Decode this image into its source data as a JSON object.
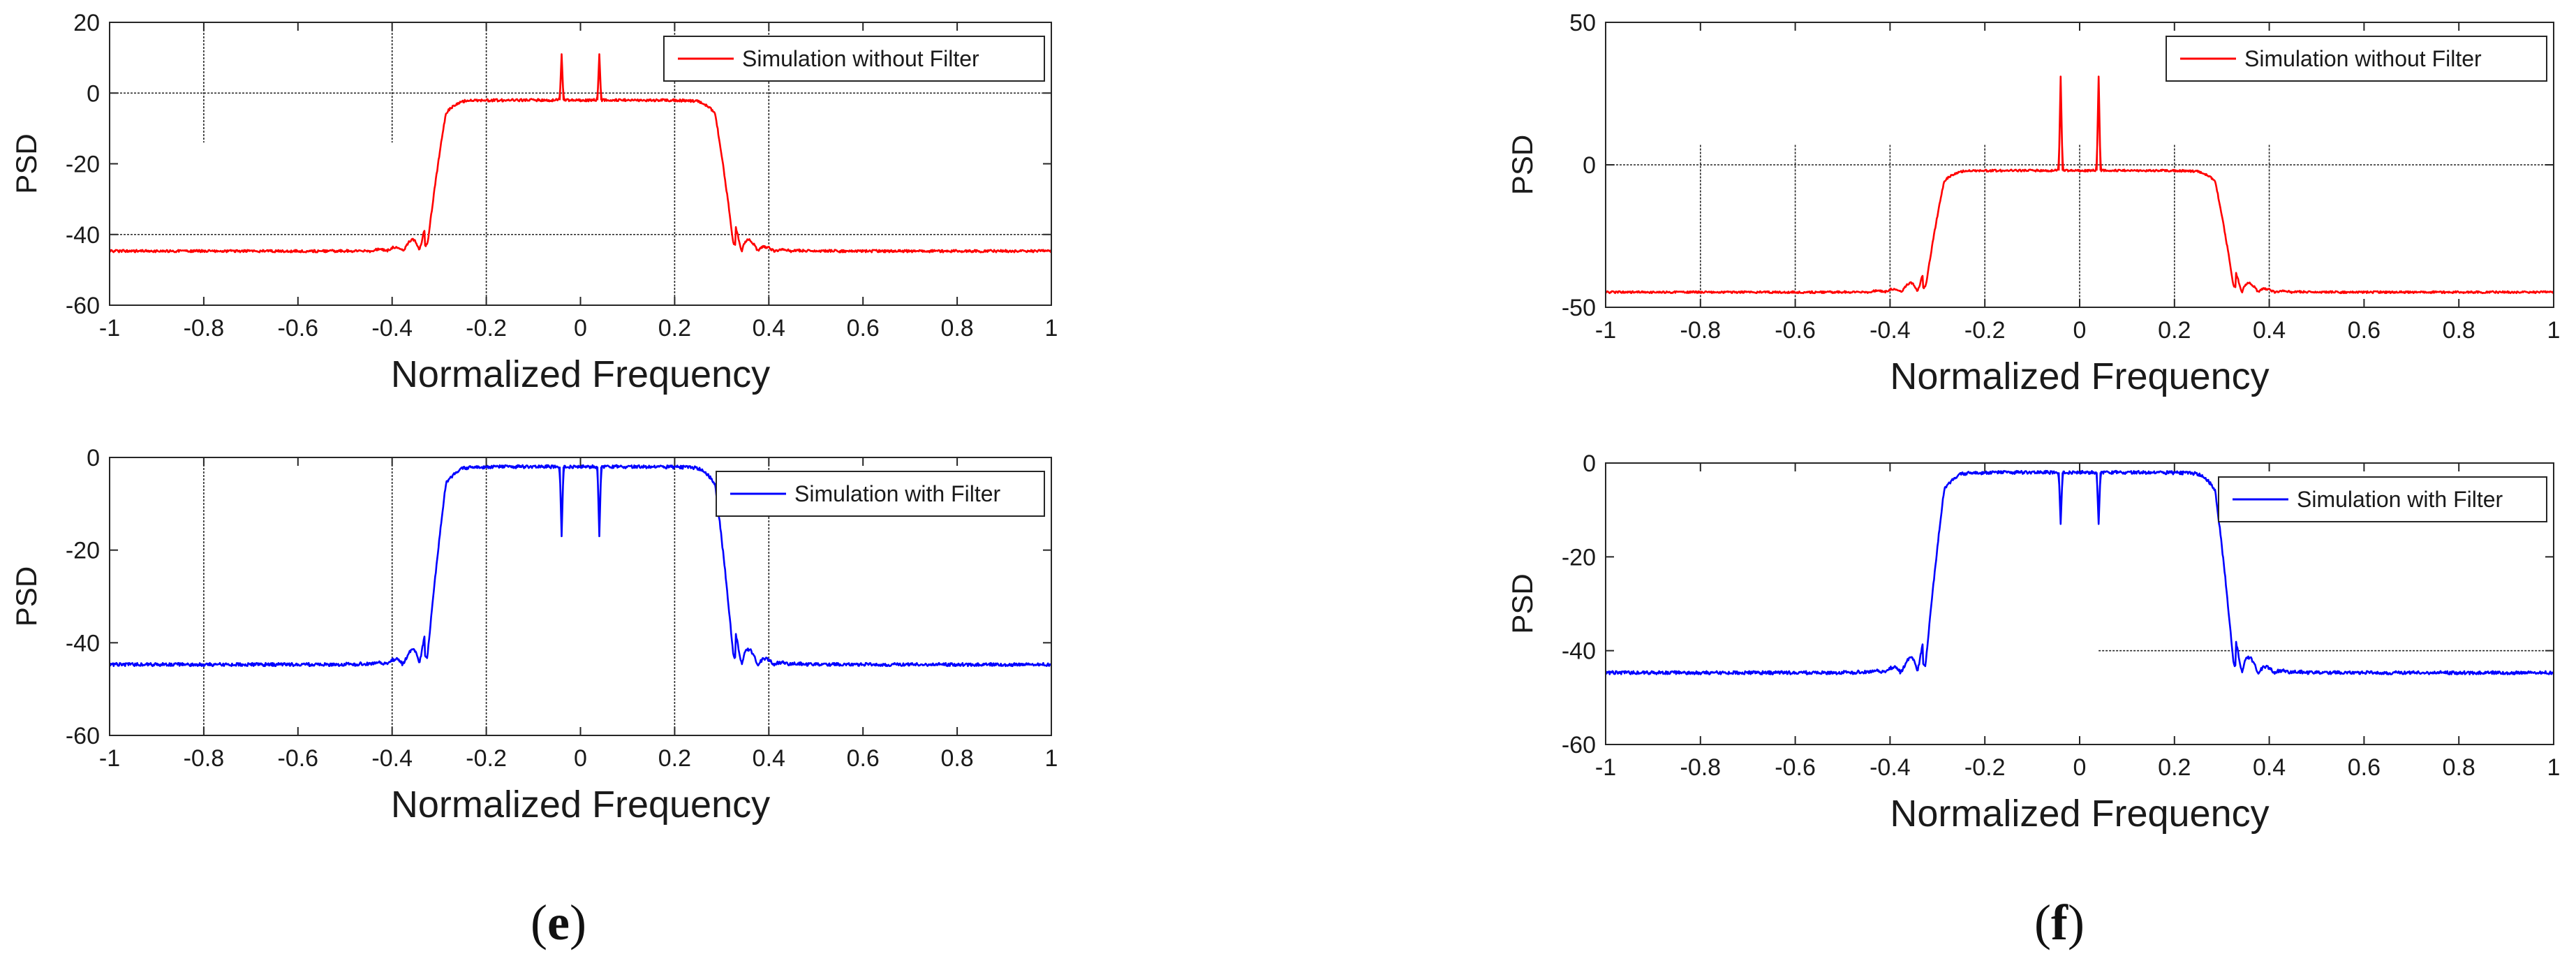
{
  "figure": {
    "panel_labels": [
      {
        "open": "(",
        "letter": "e",
        "close": ")"
      },
      {
        "open": "(",
        "letter": "f",
        "close": ")"
      }
    ]
  },
  "chart_data": [
    {
      "id": "e-top",
      "type": "line",
      "panel": "e",
      "title": "",
      "xlabel": "Normalized Frequency",
      "ylabel": "PSD",
      "xlim": [
        -1,
        1
      ],
      "ylim": [
        -60,
        20
      ],
      "xticks": [
        -1,
        -0.8,
        -0.6,
        -0.4,
        -0.2,
        0,
        0.2,
        0.4,
        0.6,
        0.8,
        1
      ],
      "yticks": [
        -60,
        -40,
        -20,
        0,
        20
      ],
      "legend": {
        "label": "Simulation without Filter",
        "color": "#ff0000",
        "position": "top-right"
      },
      "series": [
        {
          "name": "Simulation without Filter",
          "color": "#ff0000",
          "variant": "spikes",
          "passband_level": -2,
          "noise_floor": -45,
          "edge": 0.325,
          "tones": [
            {
              "x": -0.04,
              "y": 11
            },
            {
              "x": 0.04,
              "y": 11
            }
          ]
        }
      ],
      "reference_lines": {
        "vertical": [
          {
            "x": -0.8,
            "from": -14,
            "to": 20
          },
          {
            "x": -0.4,
            "from": -14,
            "to": 20
          },
          {
            "x": -0.2,
            "from": -60,
            "to": 20
          },
          {
            "x": 0.2,
            "from": -60,
            "to": 20
          },
          {
            "x": 0.4,
            "from": -60,
            "to": 20
          }
        ],
        "horizontal": [
          {
            "y": 0,
            "from": -1,
            "to": 1
          },
          {
            "y": -40,
            "from": -1,
            "to": 1
          }
        ]
      }
    },
    {
      "id": "e-bottom",
      "type": "line",
      "panel": "e",
      "title": "",
      "xlabel": "Normalized Frequency",
      "ylabel": "PSD",
      "xlim": [
        -1,
        1
      ],
      "ylim": [
        -60,
        0
      ],
      "xticks": [
        -1,
        -0.8,
        -0.6,
        -0.4,
        -0.2,
        0,
        0.2,
        0.4,
        0.6,
        0.8,
        1
      ],
      "yticks": [
        -60,
        -40,
        -20,
        0
      ],
      "legend": {
        "label": "Simulation with Filter",
        "color": "#0000ff",
        "position": "top-right"
      },
      "series": [
        {
          "name": "Simulation with Filter",
          "color": "#0000ff",
          "variant": "notches",
          "passband_level": -2,
          "noise_floor": -45,
          "edge": 0.325,
          "tones": [
            {
              "x": -0.04,
              "y": -17
            },
            {
              "x": 0.04,
              "y": -17
            }
          ]
        }
      ],
      "reference_lines": {
        "vertical": [
          {
            "x": -0.8,
            "from": -60,
            "to": 0
          },
          {
            "x": -0.4,
            "from": -60,
            "to": 0
          },
          {
            "x": -0.2,
            "from": -60,
            "to": 0
          },
          {
            "x": 0.2,
            "from": -60,
            "to": 0
          },
          {
            "x": 0.4,
            "from": -60,
            "to": 0
          }
        ],
        "horizontal": []
      }
    },
    {
      "id": "f-top",
      "type": "line",
      "panel": "f",
      "title": "",
      "xlabel": "Normalized Frequency",
      "ylabel": "PSD",
      "xlim": [
        -1,
        1
      ],
      "ylim": [
        -50,
        50
      ],
      "xticks": [
        -1,
        -0.8,
        -0.6,
        -0.4,
        -0.2,
        0,
        0.2,
        0.4,
        0.6,
        0.8,
        1
      ],
      "yticks": [
        -50,
        0,
        50
      ],
      "legend": {
        "label": "Simulation without Filter",
        "color": "#ff0000",
        "position": "top-right"
      },
      "series": [
        {
          "name": "Simulation without Filter",
          "color": "#ff0000",
          "variant": "spikes",
          "passband_level": -2,
          "noise_floor": -45,
          "edge": 0.325,
          "tones": [
            {
              "x": -0.04,
              "y": 31
            },
            {
              "x": 0.04,
              "y": 31
            }
          ]
        }
      ],
      "reference_lines": {
        "vertical": [
          {
            "x": -0.8,
            "from": -50,
            "to": 7
          },
          {
            "x": -0.6,
            "from": -50,
            "to": 7
          },
          {
            "x": -0.4,
            "from": -50,
            "to": 7
          },
          {
            "x": -0.2,
            "from": -50,
            "to": 7
          },
          {
            "x": 0,
            "from": -50,
            "to": 7
          },
          {
            "x": 0.2,
            "from": -50,
            "to": 7
          },
          {
            "x": 0.4,
            "from": -50,
            "to": 7
          }
        ],
        "horizontal": [
          {
            "y": 0,
            "from": -1,
            "to": 1
          }
        ]
      }
    },
    {
      "id": "f-bottom",
      "type": "line",
      "panel": "f",
      "title": "",
      "xlabel": "Normalized Frequency",
      "ylabel": "PSD",
      "xlim": [
        -1,
        1
      ],
      "ylim": [
        -60,
        0
      ],
      "xticks": [
        -1,
        -0.8,
        -0.6,
        -0.4,
        -0.2,
        0,
        0.2,
        0.4,
        0.6,
        0.8,
        1
      ],
      "yticks": [
        -60,
        -40,
        -20,
        0
      ],
      "legend": {
        "label": "Simulation with Filter",
        "color": "#0000ff",
        "position": "top-right"
      },
      "series": [
        {
          "name": "Simulation with Filter",
          "color": "#0000ff",
          "variant": "notches",
          "passband_level": -2,
          "noise_floor": -45,
          "edge": 0.325,
          "tones": [
            {
              "x": -0.04,
              "y": -13
            },
            {
              "x": 0.04,
              "y": -13
            }
          ]
        }
      ],
      "reference_lines": {
        "vertical": [],
        "horizontal": [
          {
            "y": -40,
            "from": 0.04,
            "to": 1
          }
        ]
      }
    }
  ]
}
